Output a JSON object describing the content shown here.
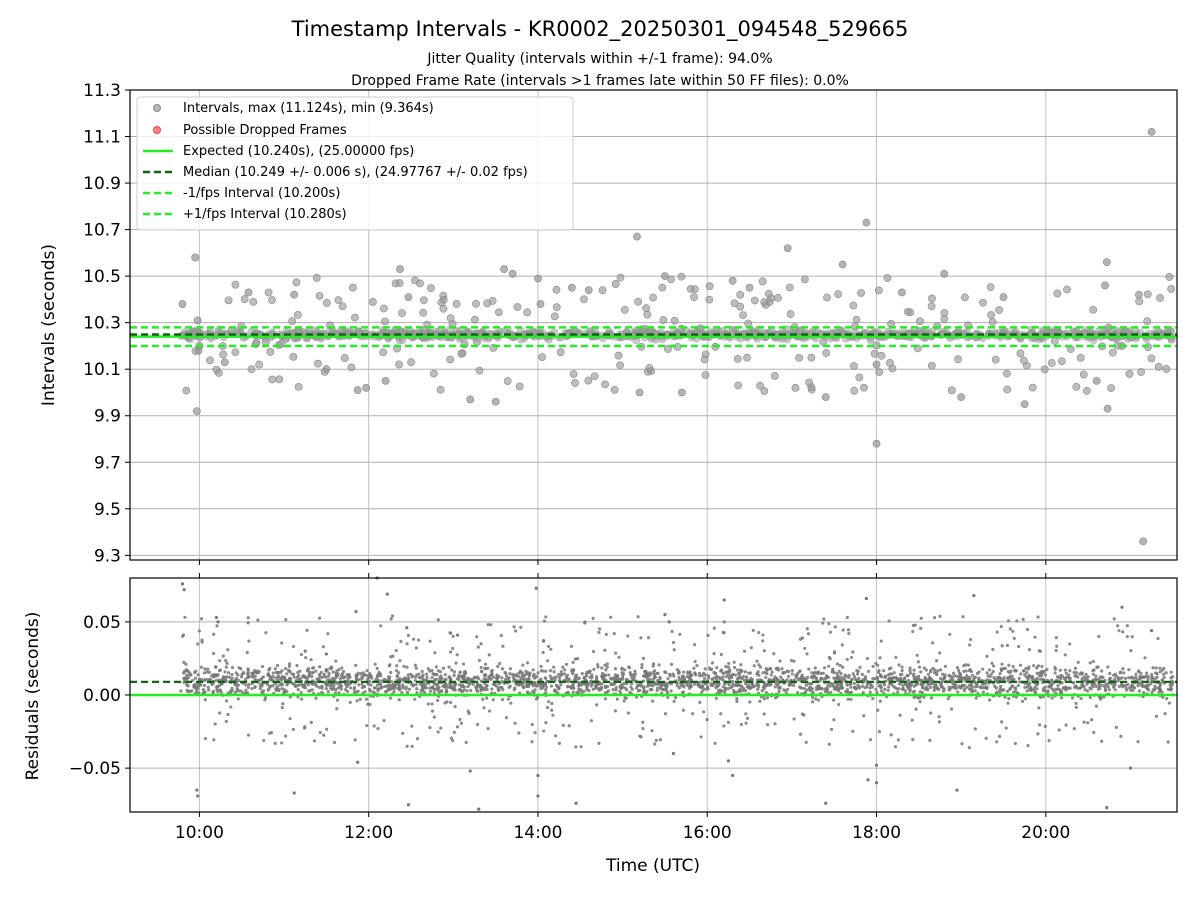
{
  "figure": {
    "title": "Timestamp Intervals - KR0002_20250301_094548_529665",
    "subtitle_1": "Jitter Quality (intervals within +/-1 frame): 94.0%",
    "subtitle_2": "Dropped Frame Rate (intervals >1 frames late within 50 FF files): 0.0%"
  },
  "colors": {
    "interval_points": "#999999",
    "residual_points": "#777777",
    "expected_line": "#22ee22",
    "median_line": "#116611",
    "jitter_bounds": "#22ee22",
    "dropped_frames": "#ff6666",
    "grid": "#b0b0b0"
  },
  "chart_data": [
    {
      "type": "scatter",
      "ylabel": "Intervals (seconds)",
      "xlabel": "",
      "ylim": [
        9.28,
        11.3
      ],
      "xlim_hours": [
        9.18,
        21.55
      ],
      "y_ticks": [
        "9.3",
        "9.5",
        "9.7",
        "9.9",
        "10.1",
        "10.3",
        "10.5",
        "10.7",
        "10.9",
        "11.1",
        "11.3"
      ],
      "grid": true,
      "legend_placement": "upper-left",
      "legend": [
        {
          "label": "Intervals, max (11.124s), min (9.364s)",
          "kind": "marker"
        },
        {
          "label": "Possible Dropped Frames",
          "kind": "marker-red"
        },
        {
          "label": "Expected (10.240s), (25.00000 fps)",
          "kind": "line"
        },
        {
          "label": "Median (10.249 +/- 0.006 s), (24.97767 +/- 0.02 fps)",
          "kind": "dashed-dark"
        },
        {
          "label": "-1/fps Interval (10.200s)",
          "kind": "dashed-green"
        },
        {
          "label": "+1/fps Interval (10.280s)",
          "kind": "dashed-green"
        }
      ],
      "reference_lines": {
        "expected": 10.24,
        "median": 10.249,
        "minus_1_fps": 10.2,
        "plus_1_fps": 10.28
      },
      "series": [
        {
          "name": "Intervals, max (11.124s), min (9.364s)",
          "x_hours": [
            9.8,
            9.95,
            9.97,
            9.98,
            9.99,
            10.58,
            11.12,
            11.87,
            11.97,
            12.37,
            12.47,
            13.6,
            13.7,
            14.0,
            14.03,
            15.17,
            15.2,
            15.5,
            16.3,
            16.95,
            17.6,
            17.88,
            18.0,
            18.0,
            18.8,
            19.75,
            20.6,
            20.72,
            20.73,
            21.15,
            21.25,
            21.1,
            20.9,
            20.7,
            18.3,
            17.4,
            16.5,
            15.7,
            14.6,
            13.2,
            12.2,
            11.5,
            10.3,
            10.0,
            14.4,
            13.5,
            19.0,
            19.5
          ],
          "values": [
            10.38,
            10.58,
            9.92,
            10.31,
            10.18,
            10.43,
            10.42,
            10.01,
            10.02,
            10.53,
            10.41,
            10.53,
            10.51,
            10.49,
            10.38,
            10.67,
            10.0,
            10.5,
            10.48,
            10.62,
            10.55,
            10.73,
            9.78,
            10.12,
            10.51,
            9.95,
            10.05,
            10.56,
            9.93,
            9.36,
            11.12,
            10.42,
            10.2,
            10.46,
            10.43,
            9.98,
            10.45,
            10.0,
            10.44,
            9.97,
            10.05,
            10.1,
            10.13,
            10.2,
            10.45,
            9.96,
            9.98,
            10.41
          ]
        }
      ],
      "dense_band": {
        "center": 10.249,
        "spread": 0.03,
        "x_range_hours": [
          9.78,
          21.5
        ]
      }
    },
    {
      "type": "scatter",
      "ylabel": "Residuals (seconds)",
      "xlabel": "Time (UTC)",
      "ylim": [
        -0.08,
        0.08
      ],
      "xlim_hours": [
        9.18,
        21.55
      ],
      "y_ticks": [
        "−0.05",
        "0.00",
        "0.05"
      ],
      "x_ticks": [
        "10:00",
        "12:00",
        "14:00",
        "16:00",
        "18:00",
        "20:00"
      ],
      "x_tick_hours": [
        10,
        12,
        14,
        16,
        18,
        20
      ],
      "grid": true,
      "reference_lines": {
        "zero": 0.0,
        "median_offset": 0.009
      },
      "series": [
        {
          "name": "Residuals",
          "x_hours": [
            9.8,
            9.82,
            9.97,
            9.98,
            10.2,
            10.22,
            11.12,
            11.25,
            11.5,
            11.85,
            11.87,
            12.1,
            12.22,
            12.45,
            12.47,
            13.05,
            13.2,
            13.3,
            13.98,
            14.0,
            14.0,
            14.45,
            15.5,
            15.55,
            15.6,
            16.2,
            16.25,
            16.3,
            17.4,
            17.88,
            17.9,
            18.0,
            18.0,
            18.95,
            19.15,
            20.72,
            20.9,
            21.0,
            21.25
          ],
          "values": [
            0.076,
            0.072,
            -0.065,
            -0.069,
            0.053,
            0.05,
            -0.067,
            0.03,
            0.028,
            0.057,
            -0.046,
            0.08,
            0.069,
            0.046,
            -0.075,
            0.041,
            -0.052,
            -0.078,
            0.073,
            -0.069,
            -0.055,
            -0.074,
            0.055,
            0.05,
            -0.04,
            0.065,
            -0.045,
            -0.055,
            -0.074,
            0.066,
            -0.058,
            -0.048,
            -0.06,
            -0.065,
            0.068,
            -0.077,
            0.06,
            -0.05,
            0.044
          ]
        }
      ],
      "dense_band": {
        "center": 0.009,
        "spread": 0.03,
        "x_range_hours": [
          9.78,
          21.5
        ]
      }
    }
  ]
}
